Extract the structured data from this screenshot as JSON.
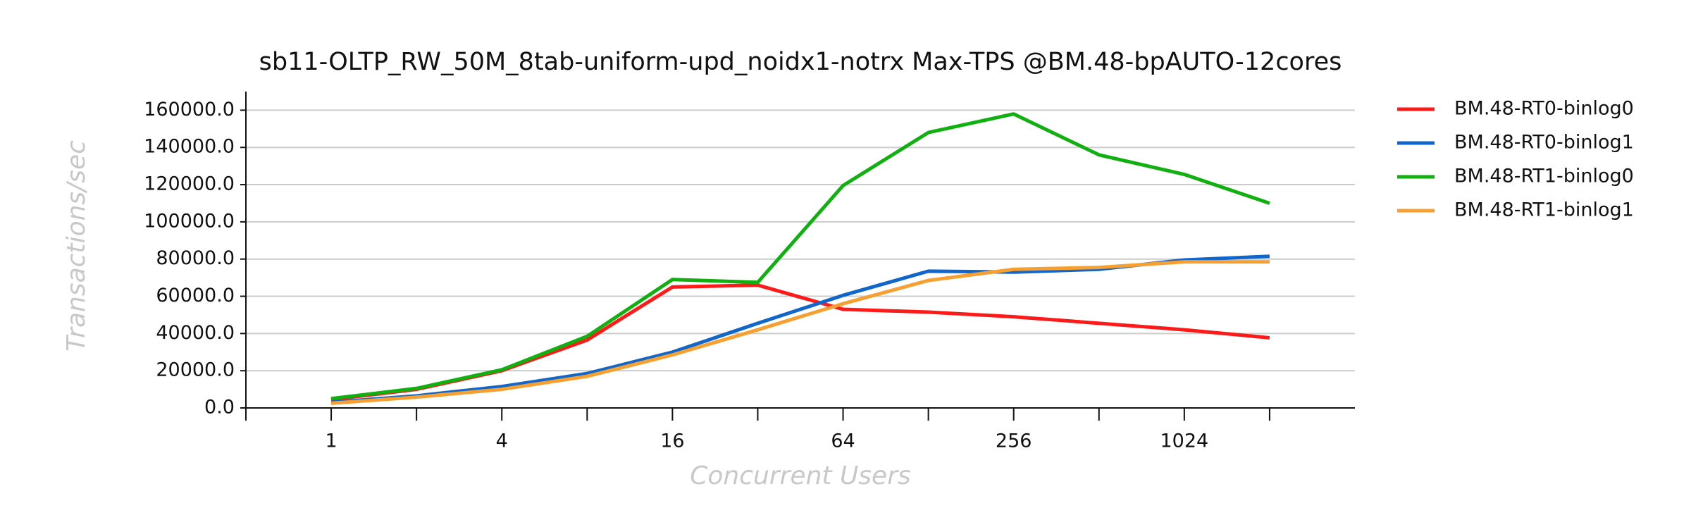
{
  "chart_data": {
    "type": "line",
    "title": "sb11-OLTP_RW_50M_8tab-uniform-upd_noidx1-notrx Max-TPS @BM.48-bpAUTO-12cores",
    "x_label": "Concurrent Users",
    "y_label": "Transactions/sec",
    "x": [
      1,
      2,
      4,
      8,
      16,
      32,
      64,
      128,
      256,
      512,
      1024,
      2048
    ],
    "x_scale": "log2",
    "xlim": [
      0.5,
      4096
    ],
    "xticks": [
      1,
      4,
      16,
      64,
      256,
      1024
    ],
    "xminor_ticks": [
      0.5,
      2,
      8,
      32,
      128,
      512,
      2048
    ],
    "ylim": [
      0,
      170000
    ],
    "yticks": [
      {
        "value": 0,
        "label": "0.0"
      },
      {
        "value": 20000,
        "label": "20000.0"
      },
      {
        "value": 40000,
        "label": "40000.0"
      },
      {
        "value": 60000,
        "label": "60000.0"
      },
      {
        "value": 80000,
        "label": "80000.0"
      },
      {
        "value": 100000,
        "label": "100000.0"
      },
      {
        "value": 120000,
        "label": "120000.0"
      },
      {
        "value": 140000,
        "label": "140000.0"
      },
      {
        "value": 160000,
        "label": "160000.0"
      }
    ],
    "grid": true,
    "legend": "right",
    "series": [
      {
        "name": "BM.48-RT0-binlog0",
        "color": "#ff1a1a",
        "values": [
          4500,
          10000,
          20000,
          36500,
          65000,
          66000,
          53000,
          51500,
          49000,
          45500,
          42000,
          37700
        ]
      },
      {
        "name": "BM.48-RT0-binlog1",
        "color": "#1166cc",
        "values": [
          3000,
          6500,
          11500,
          18500,
          30000,
          45500,
          60500,
          73500,
          73000,
          74500,
          79500,
          81500
        ]
      },
      {
        "name": "BM.48-RT1-binlog0",
        "color": "#11b011",
        "values": [
          5000,
          10500,
          20500,
          38500,
          69000,
          67500,
          119500,
          148000,
          158000,
          136000,
          125500,
          110000
        ]
      },
      {
        "name": "BM.48-RT1-binlog1",
        "color": "#f7a032",
        "values": [
          2500,
          5800,
          10000,
          17000,
          28500,
          42000,
          56000,
          68500,
          74500,
          75500,
          78500,
          78500
        ]
      }
    ]
  }
}
